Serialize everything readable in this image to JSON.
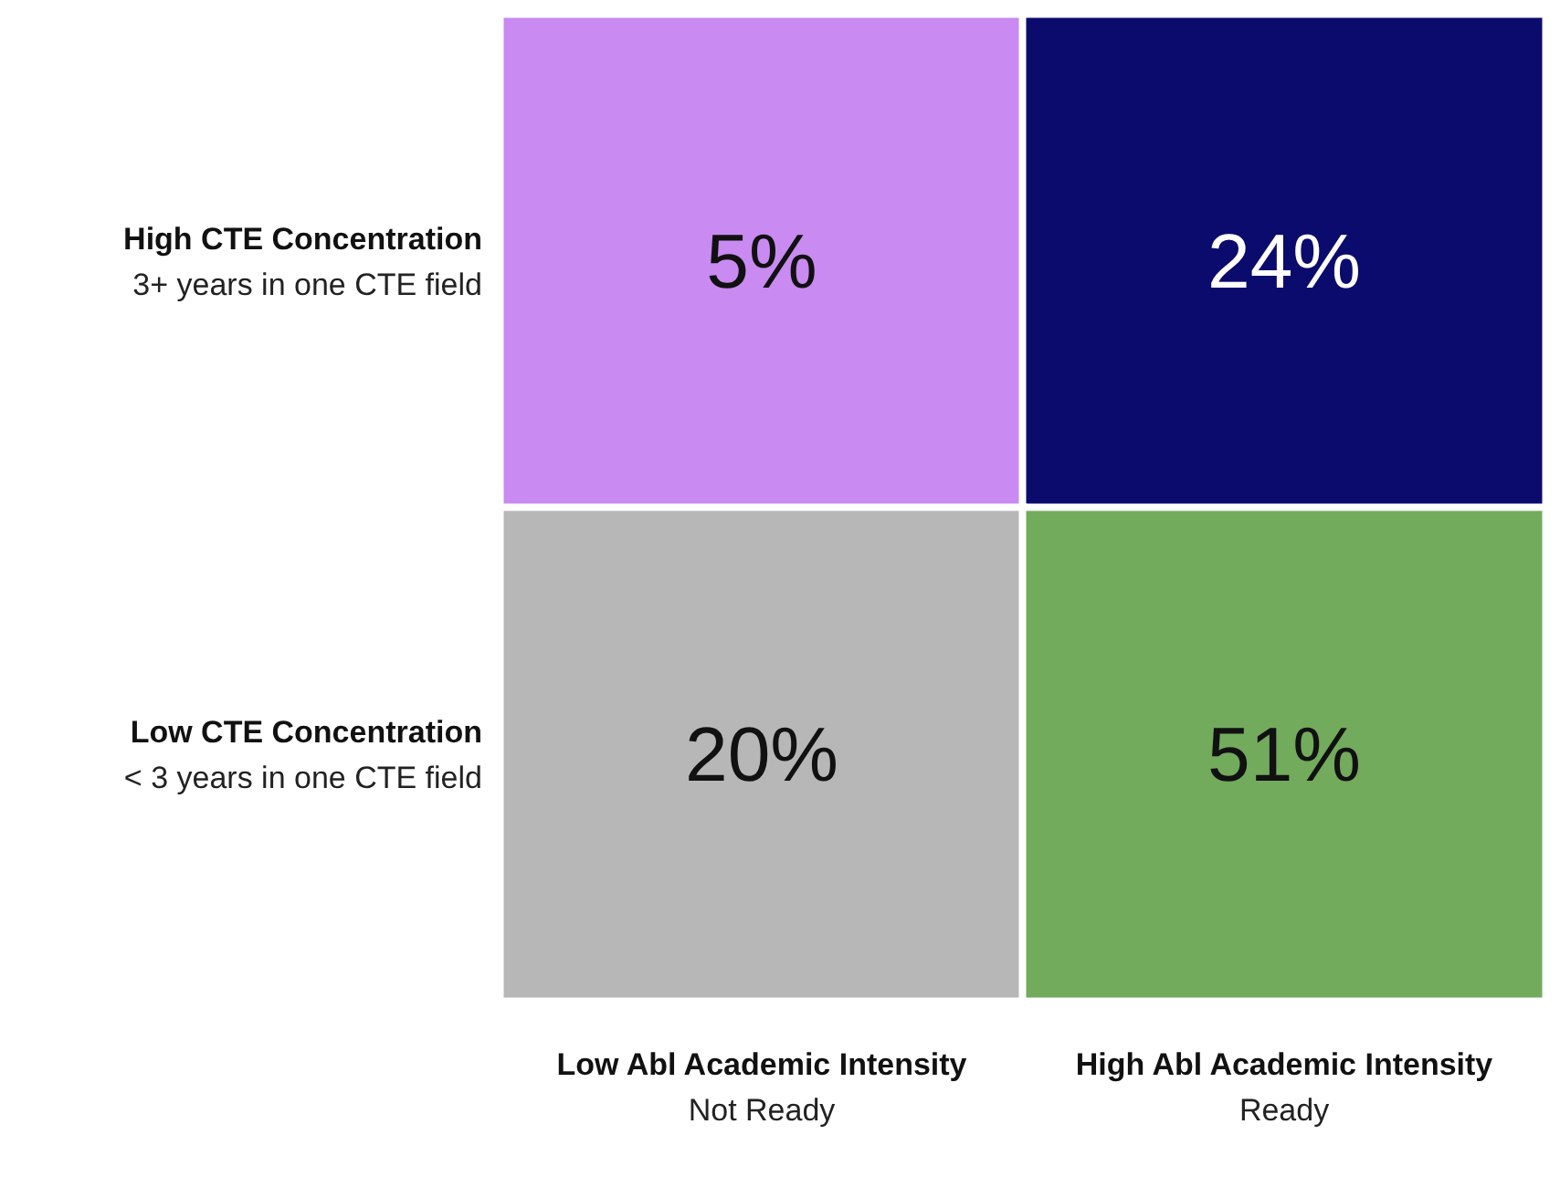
{
  "chart_data": {
    "type": "heatmap",
    "categories": [
      "Low Abl Academic Intensity\nNot Ready",
      "High Abl Academic Intensity\nReady"
    ],
    "y_categories": [
      "High CTE Concentration\n3+ years in one CTE field",
      "Low CTE Concentration\n< 3 years in one CTE field"
    ],
    "cells": [
      [
        5,
        24
      ],
      [
        20,
        51
      ]
    ],
    "cell_labels": [
      [
        "5%",
        "24%"
      ],
      [
        "20%",
        "51%"
      ]
    ],
    "colors": [
      [
        "#c98af2",
        "#0b0b6e"
      ],
      [
        "#b7b7b7",
        "#72ab5c"
      ]
    ]
  }
}
